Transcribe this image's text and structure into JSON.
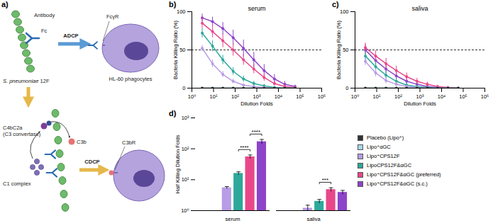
{
  "diagram": {
    "panel_label": "a)",
    "antibody": "Antibody",
    "fc": "Fc",
    "bacterium": "S. pneumoniae 12F",
    "adcp": "ADCP",
    "fcgr": "FcγR",
    "phagocyte": "HL-60 phagocytes",
    "convertase": "C4bC2a",
    "convertase_note": "(C3 convertase)",
    "c3b": "C3b",
    "c1": "C1 complex",
    "cdcp": "CDCP",
    "c3br": "C3bR"
  },
  "chart_data": [
    {
      "type": "line",
      "panel_label": "b)",
      "title": "serum",
      "x_label": "Dilution Folds",
      "y_label": "Bacteria Killing Ratio (%)",
      "log": "x",
      "marker": "circle",
      "threshold": 50,
      "xlim": [
        1,
        1000000
      ],
      "xticks": [
        {
          "value": 1,
          "label": "10⁰"
        },
        {
          "value": 10,
          "label": "10¹"
        },
        {
          "value": 100,
          "label": "10²"
        },
        {
          "value": 1000,
          "label": "10³"
        },
        {
          "value": 10000,
          "label": "10⁴"
        },
        {
          "value": 100000,
          "label": "10⁵"
        },
        {
          "value": 1000000,
          "label": "10⁶"
        }
      ],
      "ylim": [
        0,
        100
      ],
      "yticks": [
        0,
        50,
        100
      ],
      "x": [
        3,
        9,
        27,
        81,
        243,
        729,
        2187,
        6561,
        19683,
        59049
      ],
      "series": [
        {
          "name": "Placebo (Lipo⁺)",
          "color": "#333333",
          "values": [
            0,
            0,
            0,
            0,
            0,
            0,
            0,
            0,
            0,
            0
          ],
          "errors": [
            0,
            0,
            0,
            0,
            0,
            0,
            0,
            0,
            0,
            0
          ]
        },
        {
          "name": "Lipo⁺αGC",
          "color": "#a6d8ea",
          "values": [
            0,
            0,
            0,
            0,
            0,
            0,
            0,
            0,
            0,
            0
          ],
          "errors": [
            0,
            0,
            0,
            0,
            0,
            0,
            0,
            0,
            0,
            0
          ]
        },
        {
          "name": "Lipo⁺CPS12F",
          "color": "#b79ce6",
          "values": [
            52,
            32,
            18,
            9,
            4,
            2,
            1,
            0,
            0,
            0
          ],
          "errors": [
            4,
            5,
            4,
            3,
            2,
            1,
            1,
            0,
            0,
            0
          ]
        },
        {
          "name": "LipoCPS12F&αGC",
          "color": "#2ea89b",
          "values": [
            72,
            55,
            37,
            22,
            12,
            6,
            3,
            1,
            0,
            0
          ],
          "errors": [
            6,
            7,
            6,
            5,
            4,
            3,
            2,
            1,
            0,
            0
          ]
        },
        {
          "name": "Lipo⁺CPS12F&αGC (preferred)",
          "color": "#e8488a",
          "values": [
            85,
            74,
            62,
            50,
            37,
            25,
            14,
            6,
            2,
            1
          ],
          "errors": [
            7,
            8,
            9,
            8,
            7,
            6,
            5,
            3,
            2,
            1
          ]
        },
        {
          "name": "Lipo⁺CPS12F&αGC (s.c.)",
          "color": "#8e44c9",
          "values": [
            92,
            87,
            78,
            66,
            52,
            37,
            23,
            12,
            5,
            2
          ],
          "errors": [
            5,
            6,
            8,
            10,
            11,
            10,
            8,
            6,
            4,
            2
          ]
        }
      ]
    },
    {
      "type": "line",
      "panel_label": "c)",
      "title": "saliva",
      "x_label": "Dilution Folds",
      "y_label": "Bacteria Killing Ratio (%)",
      "log": "x",
      "marker": "circle",
      "threshold": 50,
      "xlim": [
        1,
        1000000
      ],
      "xticks": [
        {
          "value": 1,
          "label": "10⁰"
        },
        {
          "value": 10,
          "label": "10¹"
        },
        {
          "value": 100,
          "label": "10²"
        },
        {
          "value": 1000,
          "label": "10³"
        },
        {
          "value": 10000,
          "label": "10⁴"
        },
        {
          "value": 100000,
          "label": "10⁵"
        },
        {
          "value": 1000000,
          "label": "10⁶"
        }
      ],
      "ylim": [
        0,
        100
      ],
      "yticks": [
        0,
        50,
        100
      ],
      "x": [
        3,
        9,
        27,
        81,
        243,
        729,
        2187,
        6561,
        19683,
        59049
      ],
      "series": [
        {
          "name": "Placebo (Lipo⁺)",
          "color": "#333333",
          "values": [
            0,
            0,
            0,
            0,
            0,
            0,
            0,
            0,
            0,
            0
          ],
          "errors": [
            0,
            0,
            0,
            0,
            0,
            0,
            0,
            0,
            0,
            0
          ]
        },
        {
          "name": "Lipo⁺αGC",
          "color": "#a6d8ea",
          "values": [
            0,
            0,
            0,
            0,
            0,
            0,
            0,
            0,
            0,
            0
          ],
          "errors": [
            0,
            0,
            0,
            0,
            0,
            0,
            0,
            0,
            0,
            0
          ]
        },
        {
          "name": "Lipo⁺CPS12F",
          "color": "#b79ce6",
          "values": [
            35,
            20,
            10,
            5,
            2,
            1,
            0,
            0,
            0,
            0
          ],
          "errors": [
            5,
            5,
            4,
            3,
            2,
            1,
            0,
            0,
            0,
            0
          ]
        },
        {
          "name": "LipoCPS12F&αGC",
          "color": "#2ea89b",
          "values": [
            42,
            28,
            17,
            9,
            4,
            2,
            1,
            0,
            0,
            0
          ],
          "errors": [
            6,
            6,
            5,
            4,
            3,
            2,
            1,
            0,
            0,
            0
          ]
        },
        {
          "name": "Lipo⁺CPS12F&αGC (preferred)",
          "color": "#e8488a",
          "values": [
            53,
            42,
            32,
            23,
            15,
            9,
            5,
            2,
            1,
            0
          ],
          "errors": [
            6,
            7,
            7,
            6,
            5,
            4,
            3,
            2,
            1,
            0
          ]
        },
        {
          "name": "Lipo⁺CPS12F&αGC (s.c.)",
          "color": "#8e44c9",
          "values": [
            50,
            36,
            25,
            16,
            9,
            5,
            2,
            1,
            0,
            0
          ],
          "errors": [
            7,
            7,
            6,
            5,
            4,
            3,
            2,
            1,
            0,
            0
          ]
        }
      ]
    },
    {
      "type": "bar",
      "panel_label": "d)",
      "y_label": "Half Killing Dilution Folds",
      "log": "y",
      "legend": "right",
      "ylim": [
        1,
        1000
      ],
      "yticks": [
        {
          "value": 1,
          "label": "10⁰"
        },
        {
          "value": 10,
          "label": "10¹"
        },
        {
          "value": 100,
          "label": "10²"
        },
        {
          "value": 1000,
          "label": "10³"
        }
      ],
      "categories": [
        "serum",
        "saliva"
      ],
      "series": [
        {
          "name": "Placebo (Lipo⁺)",
          "color": "#333333",
          "values": [
            null,
            null
          ],
          "errors": [
            null,
            null
          ]
        },
        {
          "name": "Lipo⁺αGC",
          "color": "#a6d8ea",
          "values": [
            null,
            null
          ],
          "errors": [
            null,
            null
          ]
        },
        {
          "name": "Lipo⁺CPS12F",
          "color": "#b79ce6",
          "values": [
            5.5,
            1.2
          ],
          "errors": [
            0.5,
            0.3
          ]
        },
        {
          "name": "LipoCPS12F&αGC",
          "color": "#2ea89b",
          "values": [
            16,
            2.0
          ],
          "errors": [
            2,
            0.3
          ]
        },
        {
          "name": "Lipo⁺CPS12F&αGC (preferred)",
          "color": "#e8488a",
          "values": [
            55,
            4.8
          ],
          "errors": [
            8,
            0.7
          ]
        },
        {
          "name": "Lipo⁺CPS12F&αGC (s.c.)",
          "color": "#8e44c9",
          "values": [
            170,
            3.9
          ],
          "errors": [
            30,
            0.6
          ]
        }
      ],
      "annotations": [
        {
          "category": "serum",
          "from": "LipoCPS12F&αGC",
          "to": "Lipo⁺CPS12F&αGC (preferred)",
          "label": "****"
        },
        {
          "category": "serum",
          "from": "Lipo⁺CPS12F&αGC (preferred)",
          "to": "Lipo⁺CPS12F&αGC (s.c.)",
          "label": "****"
        },
        {
          "category": "saliva",
          "from": "LipoCPS12F&αGC",
          "to": "Lipo⁺CPS12F&αGC (preferred)",
          "label": "***"
        }
      ]
    }
  ]
}
